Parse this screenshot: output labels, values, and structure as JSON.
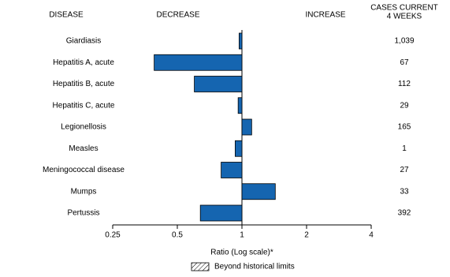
{
  "chart_data": {
    "type": "bar",
    "orientation": "horizontal",
    "log_scale": true,
    "headers": {
      "disease": "DISEASE",
      "decrease": "DECREASE",
      "increase": "INCREASE",
      "cases": [
        "CASES CURRENT",
        "4 WEEKS"
      ]
    },
    "categories": [
      "Giardiasis",
      "Hepatitis A, acute",
      "Hepatitis B, acute",
      "Hepatitis C, acute",
      "Legionellosis",
      "Measles",
      "Meningococcal disease",
      "Mumps",
      "Pertussis"
    ],
    "values": [
      0.97,
      0.39,
      0.6,
      0.96,
      1.11,
      0.93,
      0.8,
      1.43,
      0.64
    ],
    "color": "#1565b0",
    "cases": {
      "values": [
        1039,
        67,
        112,
        29,
        165,
        1,
        27,
        33,
        392
      ],
      "value_labels": [
        "1,039",
        "67",
        "112",
        "29",
        "165",
        "1",
        "27",
        "33",
        "392"
      ]
    },
    "xlim": [
      0.25,
      4
    ],
    "xticks": [
      0.25,
      0.5,
      1,
      2,
      4
    ],
    "xlabel": "Ratio (Log scale)*",
    "legend": {
      "label": "Beyond historical limits"
    }
  }
}
